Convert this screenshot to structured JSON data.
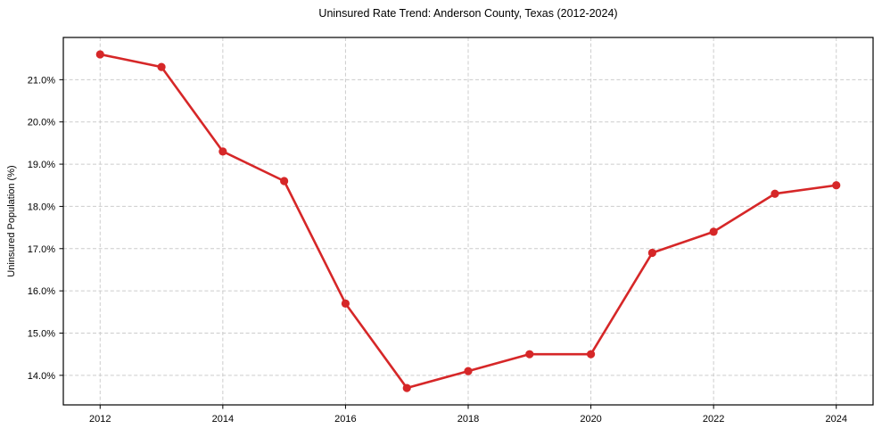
{
  "figure": {
    "background": "#ffffff"
  },
  "chart_data": {
    "type": "line",
    "title": "Uninsured Rate Trend: Anderson County, Texas (2012-2024)",
    "xlabel": "",
    "ylabel": "Uninsured Population (%)",
    "x": [
      2012,
      2013,
      2014,
      2015,
      2016,
      2017,
      2018,
      2019,
      2020,
      2021,
      2022,
      2023,
      2024
    ],
    "values": [
      21.6,
      21.3,
      19.3,
      18.6,
      15.7,
      13.7,
      14.1,
      14.5,
      14.5,
      16.9,
      17.4,
      18.3,
      18.5
    ],
    "x_ticks": [
      2012,
      2014,
      2016,
      2018,
      2020,
      2022,
      2024
    ],
    "x_tick_labels": [
      "2012",
      "2014",
      "2016",
      "2018",
      "2020",
      "2022",
      "2024"
    ],
    "y_ticks": [
      14.0,
      15.0,
      16.0,
      17.0,
      18.0,
      19.0,
      20.0,
      21.0
    ],
    "y_tick_labels": [
      "14.0%",
      "15.0%",
      "16.0%",
      "17.0%",
      "18.0%",
      "19.0%",
      "20.0%",
      "21.0%"
    ],
    "xlim": [
      2011.4,
      2024.6
    ],
    "ylim": [
      13.3,
      22.0
    ],
    "grid": true,
    "grid_style": "dashed",
    "legend_position": "none",
    "line_color": "#d62728",
    "marker": "circle",
    "grid_color": "#cccccc",
    "axis_color": "#000000"
  }
}
